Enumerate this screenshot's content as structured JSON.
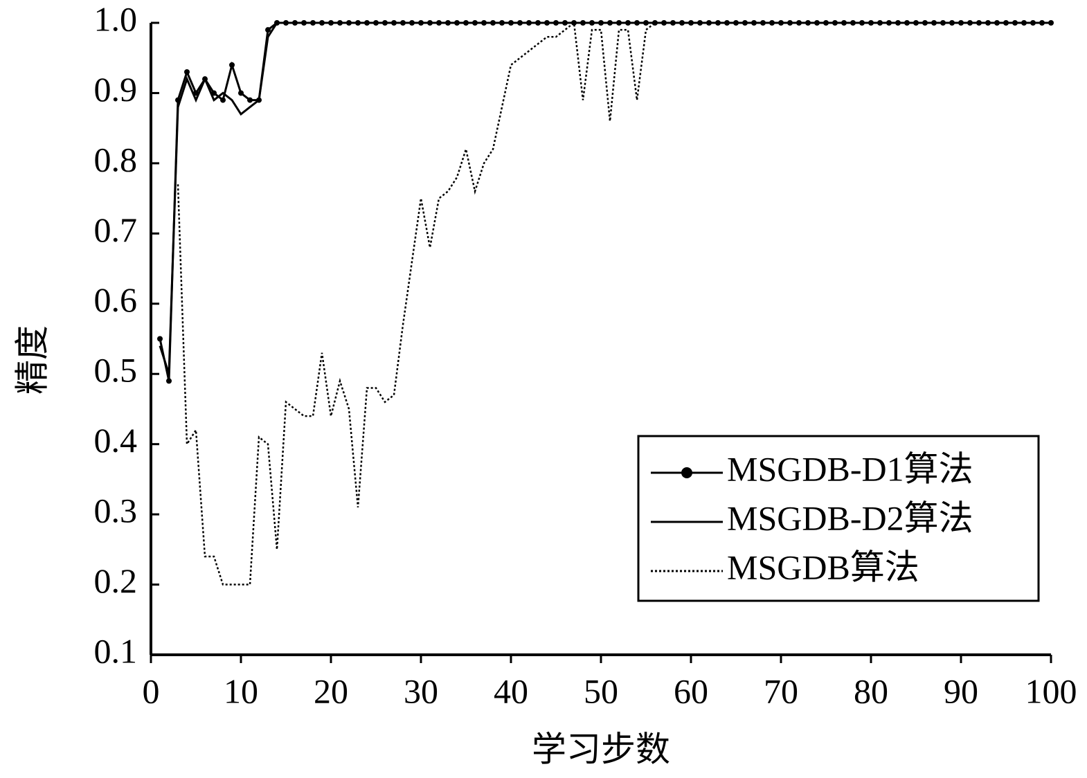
{
  "chart_data": {
    "type": "line",
    "xlabel": "学习步数",
    "ylabel": "精度",
    "x": [
      1,
      2,
      3,
      4,
      5,
      6,
      7,
      8,
      9,
      10,
      11,
      12,
      13,
      14,
      15,
      16,
      17,
      18,
      19,
      20,
      21,
      22,
      23,
      24,
      25,
      26,
      27,
      28,
      29,
      30,
      31,
      32,
      33,
      34,
      35,
      36,
      37,
      38,
      39,
      40,
      41,
      42,
      43,
      44,
      45,
      46,
      47,
      48,
      49,
      50,
      51,
      52,
      53,
      54,
      55,
      56,
      57,
      58,
      59,
      60,
      61,
      62,
      63,
      64,
      65,
      66,
      67,
      68,
      69,
      70,
      71,
      72,
      73,
      74,
      75,
      76,
      77,
      78,
      79,
      80,
      81,
      82,
      83,
      84,
      85,
      86,
      87,
      88,
      89,
      90,
      91,
      92,
      93,
      94,
      95,
      96,
      97,
      98,
      99,
      100
    ],
    "series": [
      {
        "name": "MSGDB-D1算法",
        "color": "#000000",
        "dash": "solid",
        "marker": "circle",
        "values": [
          0.55,
          0.49,
          0.89,
          0.93,
          0.9,
          0.92,
          0.9,
          0.89,
          0.94,
          0.9,
          0.89,
          0.89,
          0.99,
          1,
          1,
          1,
          1,
          1,
          1,
          1,
          1,
          1,
          1,
          1,
          1,
          1,
          1,
          1,
          1,
          1,
          1,
          1,
          1,
          1,
          1,
          1,
          1,
          1,
          1,
          1,
          1,
          1,
          1,
          1,
          1,
          1,
          1,
          1,
          1,
          1,
          1,
          1,
          1,
          1,
          1,
          1,
          1,
          1,
          1,
          1,
          1,
          1,
          1,
          1,
          1,
          1,
          1,
          1,
          1,
          1,
          1,
          1,
          1,
          1,
          1,
          1,
          1,
          1,
          1,
          1,
          1,
          1,
          1,
          1,
          1,
          1,
          1,
          1,
          1,
          1,
          1,
          1,
          1,
          1,
          1,
          1,
          1,
          1,
          1,
          1
        ]
      },
      {
        "name": "MSGDB-D2算法",
        "color": "#000000",
        "dash": "solid",
        "marker": "none",
        "values": [
          0.54,
          0.5,
          0.88,
          0.92,
          0.89,
          0.92,
          0.89,
          0.9,
          0.89,
          0.87,
          0.88,
          0.89,
          0.98,
          1,
          1,
          1,
          1,
          1,
          1,
          1,
          1,
          1,
          1,
          1,
          1,
          1,
          1,
          1,
          1,
          1,
          1,
          1,
          1,
          1,
          1,
          1,
          1,
          1,
          1,
          1,
          1,
          1,
          1,
          1,
          1,
          1,
          1,
          1,
          1,
          1,
          1,
          1,
          1,
          1,
          1,
          1,
          1,
          1,
          1,
          1,
          1,
          1,
          1,
          1,
          1,
          1,
          1,
          1,
          1,
          1,
          1,
          1,
          1,
          1,
          1,
          1,
          1,
          1,
          1,
          1,
          1,
          1,
          1,
          1,
          1,
          1,
          1,
          1,
          1,
          1,
          1,
          1,
          1,
          1,
          1,
          1,
          1,
          1,
          1,
          1
        ]
      },
      {
        "name": "MSGDB算法",
        "color": "#000000",
        "dash": "dotted",
        "marker": "none",
        "values": [
          null,
          null,
          0.77,
          0.4,
          0.42,
          0.24,
          0.24,
          0.2,
          0.2,
          0.2,
          0.2,
          0.41,
          0.4,
          0.25,
          0.46,
          0.45,
          0.44,
          0.44,
          0.53,
          0.44,
          0.49,
          0.45,
          0.31,
          0.48,
          0.48,
          0.46,
          0.47,
          0.57,
          0.66,
          0.75,
          0.68,
          0.75,
          0.76,
          0.78,
          0.82,
          0.76,
          0.8,
          0.82,
          0.88,
          0.94,
          0.95,
          0.96,
          0.97,
          0.98,
          0.98,
          0.99,
          1,
          0.89,
          0.99,
          0.99,
          0.86,
          0.99,
          0.99,
          0.89,
          0.99,
          1,
          1,
          1,
          1,
          1,
          1,
          1,
          1,
          1,
          1,
          1,
          1,
          1,
          1,
          1,
          1,
          1,
          1,
          1,
          1,
          1,
          1,
          1,
          1,
          1,
          1,
          1,
          1,
          1,
          1,
          1,
          1,
          1,
          1,
          1,
          1,
          1,
          1,
          1,
          1,
          1,
          1,
          1,
          1,
          1
        ]
      }
    ],
    "xlim": [
      0,
      100
    ],
    "xticks": [
      0,
      10,
      20,
      30,
      40,
      50,
      60,
      70,
      80,
      90,
      100
    ],
    "ylim": [
      0.1,
      1
    ],
    "yticks": [
      0.1,
      0.2,
      0.3,
      0.4,
      0.5,
      0.6,
      0.7,
      0.8,
      0.9,
      {
        "value": 1,
        "label": "1.0"
      }
    ],
    "grid": false,
    "legend": "lower right"
  }
}
